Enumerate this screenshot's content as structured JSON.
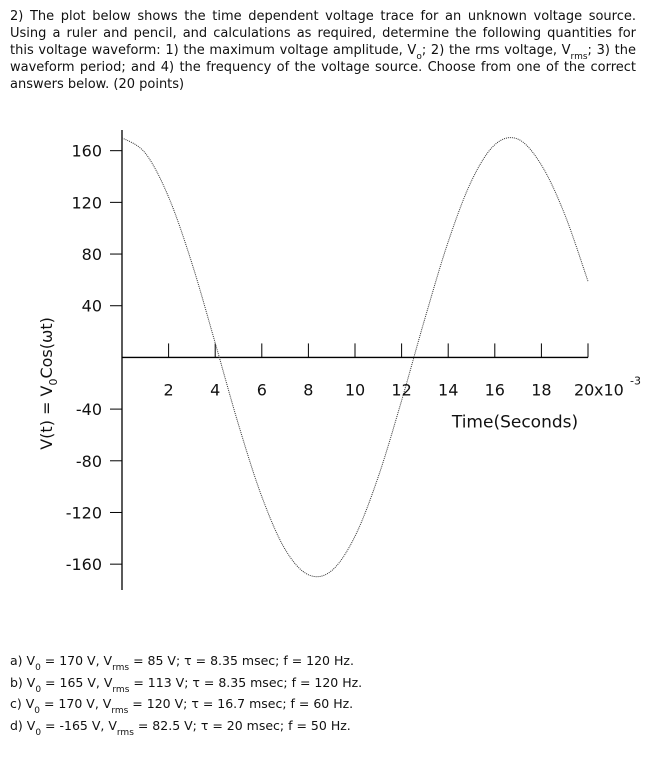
{
  "question": [
    {
      "text": "2) The plot below shows the time dependent voltage trace for an unknown voltage source. Using a ruler and pencil, and calculations as required, determine the following quantities for this voltage waveform: 1) the maximum voltage amplitude, V"
    },
    {
      "sub": "o"
    },
    {
      "text": "; 2) the rms voltage, V"
    },
    {
      "sub": "rms"
    },
    {
      "text": "; 3) the waveform period; and 4) the frequency of the voltage source. Choose from one of the correct answers below. (20 points)"
    }
  ],
  "chart_data": {
    "type": "line",
    "ylabel": [
      {
        "text": "V(t) = V"
      },
      {
        "sub": "0"
      },
      {
        "text": "Cos(ωt)"
      }
    ],
    "xlabel": "Time(Seconds)",
    "x_multiplier": "x10",
    "x_multiplier_exp": "-3",
    "x": [
      0,
      1,
      2,
      3,
      4,
      5,
      6,
      7,
      8,
      9,
      10,
      11,
      12,
      13,
      14,
      15,
      16,
      17,
      18,
      19,
      20
    ],
    "values": [
      170,
      158.1,
      124.1,
      72.9,
      11.2,
      -52.0,
      -107.7,
      -148.5,
      -168.2,
      -165.0,
      -138.4,
      -92.3,
      -33.4,
      30.1,
      89.5,
      136.6,
      164.6,
      168.9,
      148.9,
      110.7,
      58.9
    ],
    "color": "#333333",
    "xlim": [
      0,
      20
    ],
    "ylim": [
      -180,
      176
    ],
    "xticks": [
      2,
      4,
      6,
      8,
      10,
      12,
      14,
      16,
      18,
      20
    ],
    "yticks": [
      -160,
      -120,
      -80,
      -40,
      40,
      80,
      120,
      160
    ]
  },
  "answers": [
    [
      {
        "text": "a) V"
      },
      {
        "sub": "0"
      },
      {
        "text": " = 170 V, V"
      },
      {
        "sub": "rms"
      },
      {
        "text": " = 85 V; τ = 8.35 msec; f = 120 Hz."
      }
    ],
    [
      {
        "text": "b) V"
      },
      {
        "sub": "0"
      },
      {
        "text": " = 165 V, V"
      },
      {
        "sub": "rms"
      },
      {
        "text": " = 113 V; τ = 8.35 msec; f = 120 Hz."
      }
    ],
    [
      {
        "text": "c) V"
      },
      {
        "sub": "0"
      },
      {
        "text": " = 170 V, V"
      },
      {
        "sub": "rms"
      },
      {
        "text": " = 120 V; τ = 16.7 msec; f = 60 Hz."
      }
    ],
    [
      {
        "text": "d) V"
      },
      {
        "sub": "0"
      },
      {
        "text": " = -165 V, V"
      },
      {
        "sub": "rms"
      },
      {
        "text": " = 82.5 V; τ = 20 msec; f = 50 Hz."
      }
    ]
  ]
}
